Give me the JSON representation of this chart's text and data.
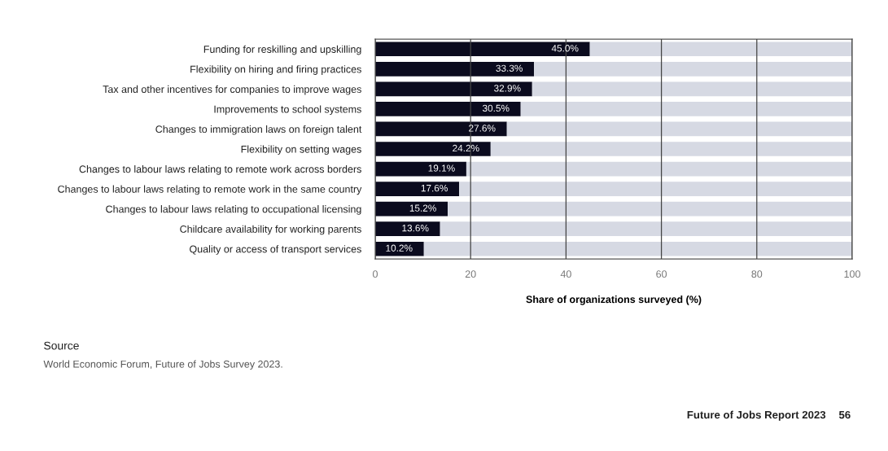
{
  "chart_data": {
    "type": "bar",
    "orientation": "horizontal",
    "stacked": true,
    "categories": [
      "Funding for reskilling and upskilling",
      "Flexibility on hiring and firing practices",
      "Tax and other incentives for companies to improve wages",
      "Improvements to school systems",
      "Changes to immigration laws on foreign talent",
      "Flexibility on setting wages",
      "Changes to labour laws relating to remote work across borders",
      "Changes to labour laws relating to remote work in the same country",
      "Changes to labour laws relating to occupational licensing",
      "Childcare availability for working parents",
      "Quality or access of transport services"
    ],
    "series": [
      {
        "color": "#0b0b1e",
        "values": [
          45.0,
          33.3,
          32.9,
          30.5,
          27.6,
          24.2,
          19.1,
          17.6,
          15.2,
          13.6,
          10.2
        ],
        "value_labels": [
          "45.0%",
          "33.3%",
          "32.9%",
          "30.5%",
          "27.6%",
          "24.2%",
          "19.1%",
          "17.6%",
          "15.2%",
          "13.6%",
          "10.2%"
        ]
      },
      {
        "color": "#d6d9e3",
        "values": [
          55.0,
          66.7,
          67.1,
          69.5,
          72.4,
          75.8,
          80.9,
          82.4,
          84.8,
          86.4,
          89.8
        ]
      }
    ],
    "xlim": [
      0,
      100
    ],
    "xticks": [
      0,
      20,
      40,
      60,
      80,
      100
    ],
    "grid": "x",
    "legend": false,
    "xlabel": "Share of organizations surveyed (%)",
    "annotations": [
      "Source",
      "World Economic Forum, Future of Jobs Survey 2023.",
      "Future of Jobs Report 2023",
      "56"
    ]
  }
}
